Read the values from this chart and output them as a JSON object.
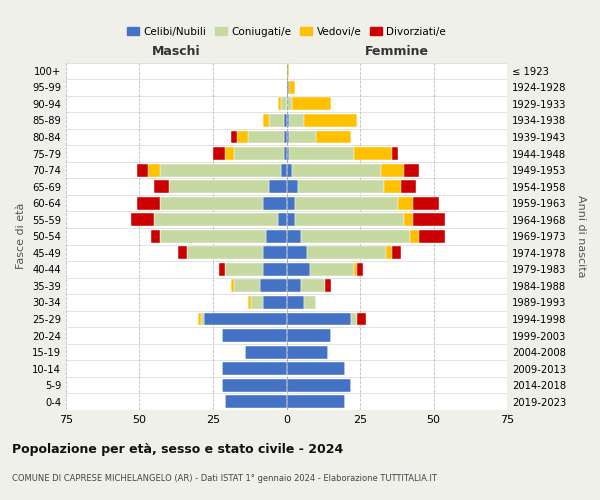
{
  "age_groups": [
    "0-4",
    "5-9",
    "10-14",
    "15-19",
    "20-24",
    "25-29",
    "30-34",
    "35-39",
    "40-44",
    "45-49",
    "50-54",
    "55-59",
    "60-64",
    "65-69",
    "70-74",
    "75-79",
    "80-84",
    "85-89",
    "90-94",
    "95-99",
    "100+"
  ],
  "birth_years": [
    "2019-2023",
    "2014-2018",
    "2009-2013",
    "2004-2008",
    "1999-2003",
    "1994-1998",
    "1989-1993",
    "1984-1988",
    "1979-1983",
    "1974-1978",
    "1969-1973",
    "1964-1968",
    "1959-1963",
    "1954-1958",
    "1949-1953",
    "1944-1948",
    "1939-1943",
    "1934-1938",
    "1929-1933",
    "1924-1928",
    "≤ 1923"
  ],
  "maschi": {
    "celibi": [
      21,
      22,
      22,
      14,
      22,
      28,
      8,
      9,
      8,
      8,
      7,
      3,
      8,
      6,
      2,
      1,
      1,
      1,
      0,
      0,
      0
    ],
    "coniugati": [
      0,
      0,
      0,
      0,
      0,
      1,
      4,
      9,
      13,
      26,
      36,
      42,
      35,
      34,
      41,
      17,
      12,
      5,
      2,
      0,
      0
    ],
    "vedovi": [
      0,
      0,
      0,
      0,
      0,
      1,
      1,
      1,
      0,
      0,
      0,
      0,
      0,
      0,
      4,
      3,
      4,
      2,
      1,
      0,
      0
    ],
    "divorziati": [
      0,
      0,
      0,
      0,
      0,
      0,
      0,
      0,
      2,
      3,
      3,
      8,
      8,
      5,
      4,
      4,
      2,
      0,
      0,
      0,
      0
    ]
  },
  "femmine": {
    "nubili": [
      20,
      22,
      20,
      14,
      15,
      22,
      6,
      5,
      8,
      7,
      5,
      3,
      3,
      4,
      2,
      1,
      1,
      1,
      0,
      1,
      0
    ],
    "coniugate": [
      0,
      0,
      0,
      0,
      0,
      2,
      4,
      8,
      15,
      27,
      37,
      37,
      35,
      29,
      30,
      22,
      9,
      5,
      2,
      0,
      0
    ],
    "vedove": [
      0,
      0,
      0,
      0,
      0,
      0,
      0,
      0,
      1,
      2,
      3,
      3,
      5,
      6,
      8,
      13,
      12,
      18,
      13,
      2,
      1
    ],
    "divorziate": [
      0,
      0,
      0,
      0,
      0,
      3,
      0,
      2,
      2,
      3,
      9,
      11,
      9,
      5,
      5,
      2,
      0,
      0,
      0,
      0,
      0
    ]
  },
  "colors": {
    "celibi": "#4472c4",
    "coniugati": "#c5d9a0",
    "vedovi": "#ffc000",
    "divorziati": "#cc0000"
  },
  "xlim": 75,
  "title": "Popolazione per età, sesso e stato civile - 2024",
  "subtitle": "COMUNE DI CAPRESE MICHELANGELO (AR) - Dati ISTAT 1° gennaio 2024 - Elaborazione TUTTITALIA.IT",
  "xlabel_left": "Maschi",
  "xlabel_right": "Femmine",
  "ylabel_left": "Fasce di età",
  "ylabel_right": "Anni di nascita",
  "bg_color": "#f0f0eb",
  "plot_bg_color": "#ffffff"
}
